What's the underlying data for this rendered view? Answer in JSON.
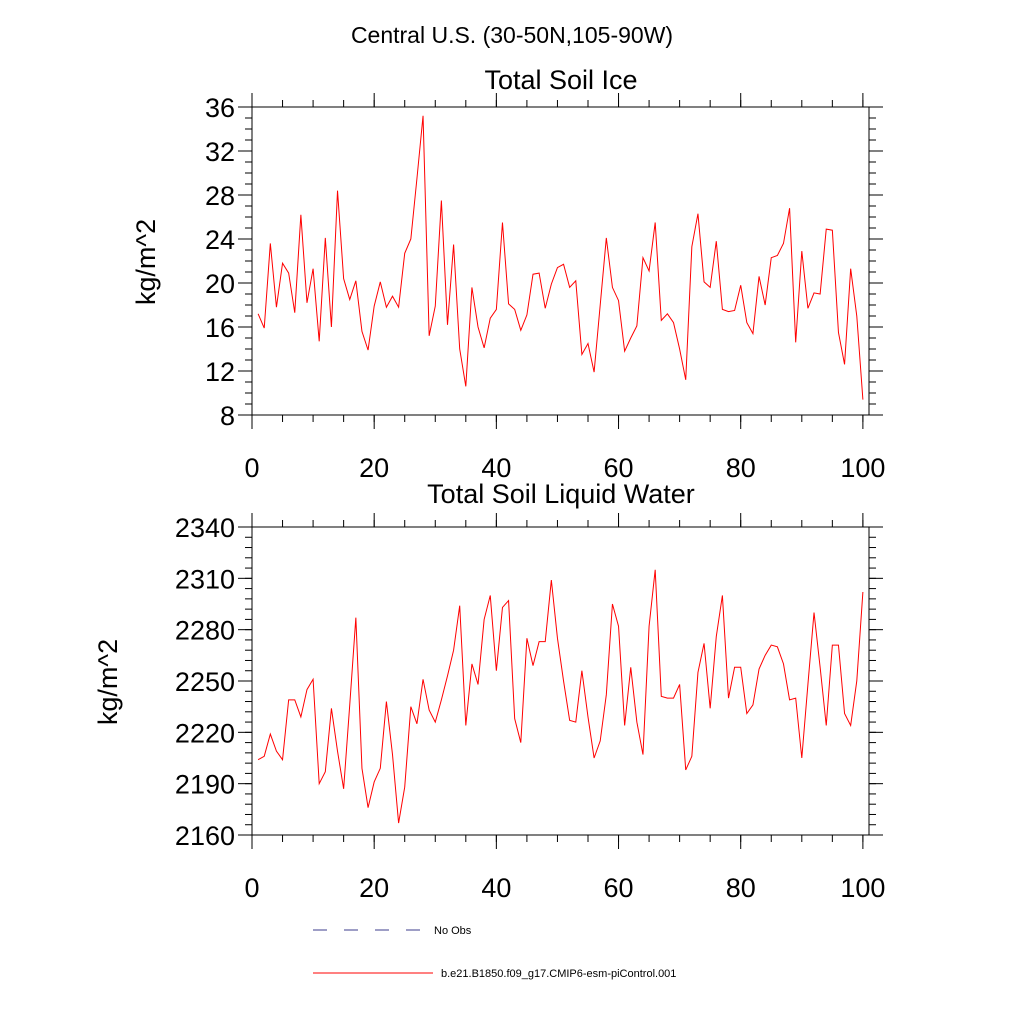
{
  "figure_title": "Central U.S. (30-50N,105-90W)",
  "legend": [
    {
      "label": "No Obs",
      "color": "#3c3c8c",
      "style": "dashed"
    },
    {
      "label": "b.e21.B1850.f09_g17.CMIP6-esm-piControl.001",
      "color": "#ff0000",
      "style": "solid"
    }
  ],
  "chart_data": [
    {
      "type": "line",
      "title": "Total Soil Ice",
      "xlabel": "",
      "ylabel": "kg/m^2",
      "xlim": [
        0,
        101
      ],
      "ylim": [
        8,
        36
      ],
      "xticks": [
        0,
        20,
        40,
        60,
        80,
        100
      ],
      "yticks": [
        8,
        12,
        16,
        20,
        24,
        28,
        32,
        36
      ],
      "yminor_step": 1,
      "xminor_step": 5,
      "series": [
        {
          "color": "#ff0000",
          "x_start": 1,
          "values": [
            17.2,
            15.9,
            23.6,
            17.8,
            21.8,
            20.9,
            17.3,
            26.2,
            18.2,
            21.3,
            14.7,
            24.1,
            16.0,
            28.4,
            20.4,
            18.5,
            20.2,
            15.6,
            13.9,
            17.9,
            20.1,
            17.8,
            18.8,
            17.8,
            22.7,
            24.0,
            29.5,
            35.2,
            15.2,
            17.9,
            27.5,
            16.2,
            23.5,
            14.0,
            10.6,
            19.6,
            16.0,
            14.1,
            16.8,
            17.6,
            25.5,
            18.1,
            17.6,
            15.7,
            17.1,
            20.8,
            20.9,
            17.7,
            19.9,
            21.4,
            21.7,
            19.6,
            20.2,
            13.5,
            14.5,
            11.9,
            18.0,
            24.1,
            19.6,
            18.4,
            13.8,
            15.0,
            16.1,
            22.3,
            21.1,
            25.5,
            16.6,
            17.2,
            16.4,
            14.0,
            11.2,
            23.3,
            26.3,
            20.1,
            19.6,
            23.8,
            17.6,
            17.4,
            17.5,
            19.8,
            16.4,
            15.4,
            20.6,
            18.0,
            22.3,
            22.5,
            23.6,
            26.8,
            14.6,
            22.9,
            17.7,
            19.1,
            19.0,
            24.9,
            24.8,
            15.5,
            12.6,
            21.3,
            17.0,
            9.4
          ]
        }
      ]
    },
    {
      "type": "line",
      "title": "Total Soil Liquid Water",
      "xlabel": "",
      "ylabel": "kg/m^2",
      "xlim": [
        0,
        101
      ],
      "ylim": [
        2160,
        2340
      ],
      "xticks": [
        0,
        20,
        40,
        60,
        80,
        100
      ],
      "yticks": [
        2160,
        2190,
        2220,
        2250,
        2280,
        2310,
        2340
      ],
      "yminor_step": 6,
      "xminor_step": 5,
      "series": [
        {
          "color": "#ff0000",
          "x_start": 1,
          "values": [
            2204,
            2206,
            2219,
            2209,
            2204,
            2239,
            2239,
            2229,
            2245,
            2251,
            2190,
            2197,
            2234,
            2209,
            2187,
            2236,
            2287,
            2199,
            2176,
            2191,
            2199,
            2238,
            2207,
            2167,
            2188,
            2235,
            2225,
            2251,
            2233,
            2226,
            2239,
            2253,
            2268,
            2294,
            2224,
            2260,
            2248,
            2286,
            2300,
            2256,
            2293,
            2297,
            2228,
            2214,
            2275,
            2259,
            2273,
            2273,
            2309,
            2275,
            2250,
            2227,
            2226,
            2256,
            2229,
            2205,
            2215,
            2242,
            2295,
            2282,
            2224,
            2258,
            2226,
            2207,
            2282,
            2315,
            2241,
            2240,
            2240,
            2248,
            2198,
            2206,
            2255,
            2272,
            2234,
            2276,
            2300,
            2240,
            2258,
            2258,
            2231,
            2236,
            2257,
            2265,
            2271,
            2270,
            2260,
            2239,
            2240,
            2205,
            2248,
            2290,
            2258,
            2224,
            2271,
            2271,
            2231,
            2224,
            2250,
            2302
          ]
        }
      ]
    }
  ]
}
